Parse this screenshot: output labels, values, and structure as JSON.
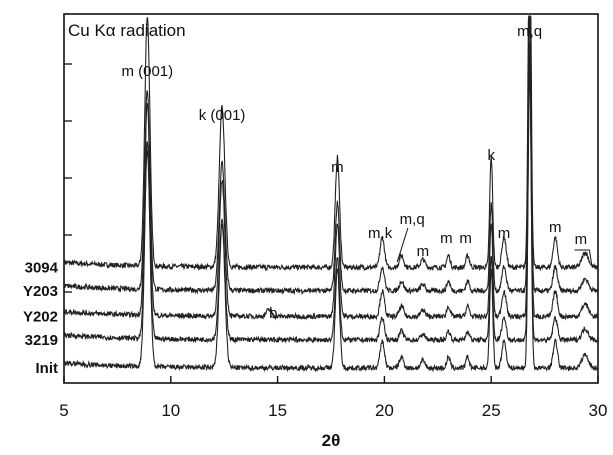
{
  "chart_data": {
    "type": "line",
    "title": "Cu Kα radiation",
    "xlabel": "2θ",
    "ylabel": "",
    "xlim": [
      5,
      30
    ],
    "x_ticks": [
      5,
      10,
      15,
      20,
      25,
      30
    ],
    "x_tick_labels": [
      "5",
      "10",
      "15",
      "20",
      "25",
      "30"
    ],
    "grid": false,
    "series": [
      {
        "name": "3094",
        "baseline": 0.86,
        "scale": 1.0
      },
      {
        "name": "Y203",
        "baseline": 0.66,
        "scale": 0.8
      },
      {
        "name": "Y202",
        "baseline": 0.44,
        "scale": 0.85
      },
      {
        "name": "3219",
        "baseline": 0.24,
        "scale": 0.75
      },
      {
        "name": "Init",
        "baseline": 0.0,
        "scale": 0.9
      }
    ],
    "peaks": [
      {
        "x": 8.9,
        "height": 2.5,
        "width": 0.12,
        "label": "m (001)"
      },
      {
        "x": 12.4,
        "height": 1.6,
        "width": 0.13,
        "label": "k (001)"
      },
      {
        "x": 17.8,
        "height": 1.1,
        "width": 0.1,
        "label": "m"
      },
      {
        "x": 19.9,
        "height": 0.3,
        "width": 0.1,
        "label": "m,k"
      },
      {
        "x": 20.8,
        "height": 0.12,
        "width": 0.1,
        "label": "m,q"
      },
      {
        "x": 21.8,
        "height": 0.08,
        "width": 0.1,
        "label": "m"
      },
      {
        "x": 23.0,
        "height": 0.12,
        "width": 0.08,
        "label": "m"
      },
      {
        "x": 23.9,
        "height": 0.12,
        "width": 0.08,
        "label": "m"
      },
      {
        "x": 25.0,
        "height": 1.1,
        "width": 0.07,
        "label": "k"
      },
      {
        "x": 25.6,
        "height": 0.3,
        "width": 0.1,
        "label": "m"
      },
      {
        "x": 26.8,
        "height": 3.6,
        "width": 0.07,
        "label": "m,q"
      },
      {
        "x": 28.0,
        "height": 0.3,
        "width": 0.1,
        "label": "m"
      },
      {
        "x": 29.4,
        "height": 0.15,
        "width": 0.15,
        "label": "m"
      },
      {
        "x": 14.6,
        "height": 0.08,
        "width": 0.12,
        "label": "b"
      }
    ],
    "annotations": [
      {
        "text": "m (001)",
        "x": 8.9
      },
      {
        "text": "k (001)",
        "x": 12.4
      },
      {
        "text": "m",
        "x": 17.8
      },
      {
        "text": "m,k",
        "x": 19.8
      },
      {
        "text": "m,q",
        "x": 21.3
      },
      {
        "text": "m",
        "x": 21.8
      },
      {
        "text": "m",
        "x": 22.9
      },
      {
        "text": "m",
        "x": 23.8
      },
      {
        "text": "k",
        "x": 25.0
      },
      {
        "text": "m",
        "x": 25.6
      },
      {
        "text": "m,q",
        "x": 26.8
      },
      {
        "text": "m",
        "x": 28.0
      },
      {
        "text": "m",
        "x": 29.2
      },
      {
        "text": "b",
        "x": 14.8
      }
    ]
  }
}
